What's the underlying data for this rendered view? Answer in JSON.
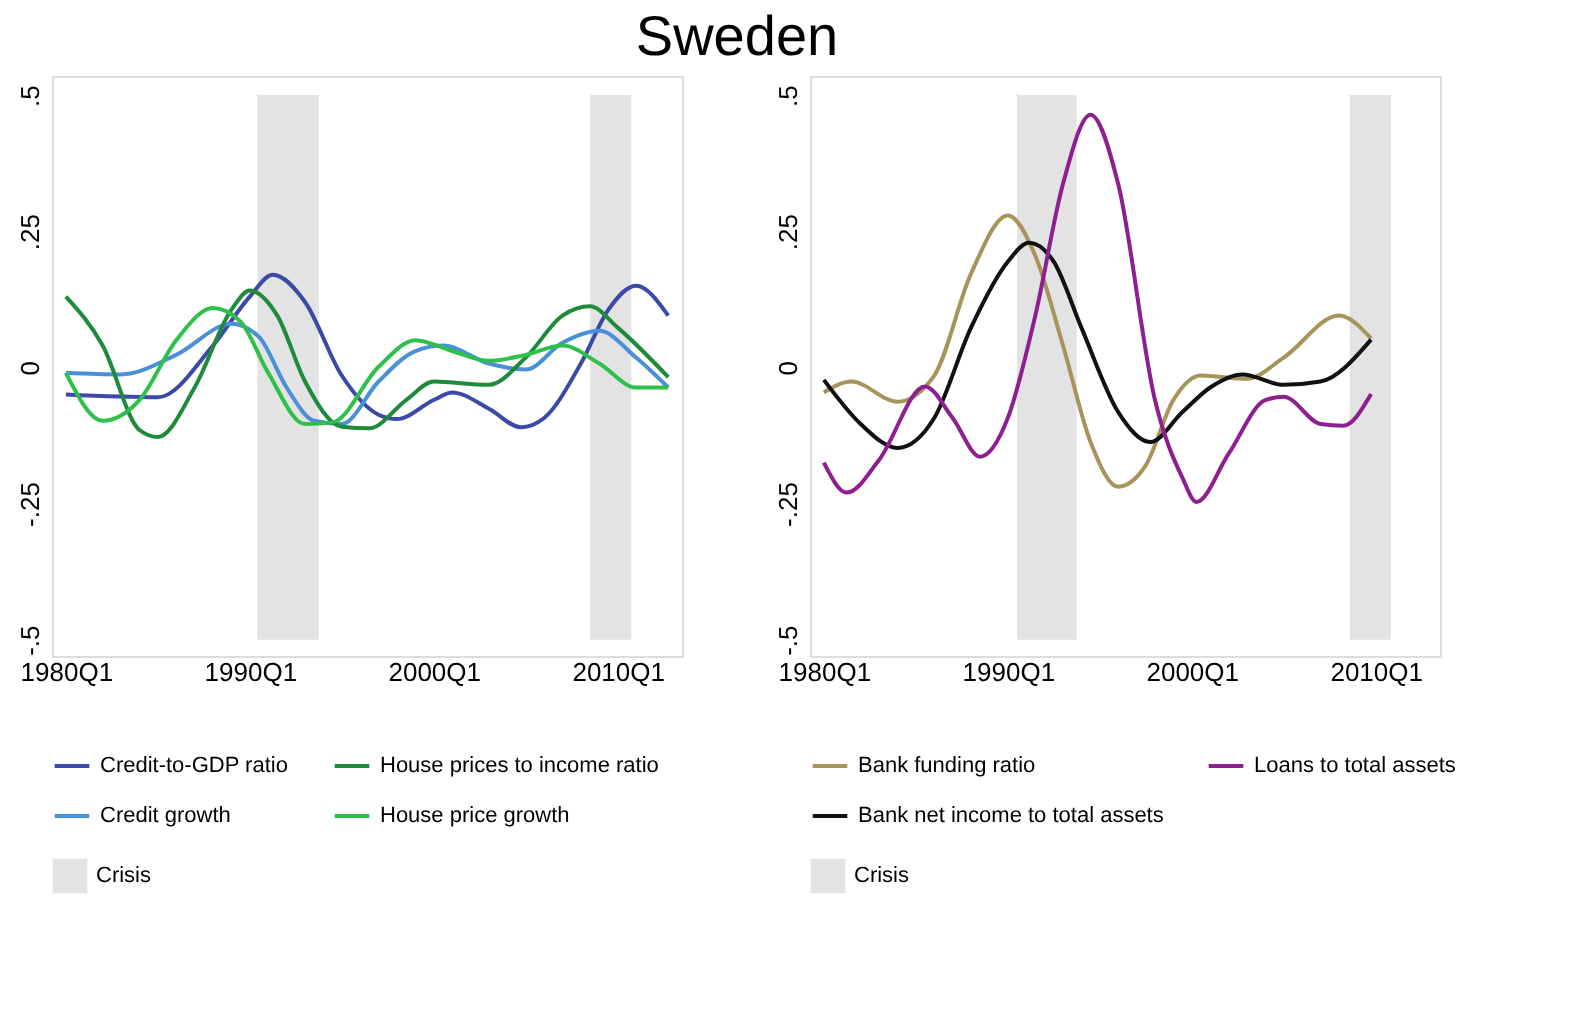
{
  "chart_data": [
    {
      "type": "line",
      "title": "Sweden",
      "xlim": [
        "1979-04",
        "2013-07"
      ],
      "ylim": [
        -0.53,
        0.535
      ],
      "xticks": [
        {
          "value": "1980-01",
          "label": "1980Q1"
        },
        {
          "value": "1990-01",
          "label": "1990Q1"
        },
        {
          "value": "2000-01",
          "label": "2000Q1"
        },
        {
          "value": "2010-01",
          "label": "2010Q1"
        }
      ],
      "yticks": [
        {
          "value": -0.5,
          "label": "-.5"
        },
        {
          "value": -0.25,
          "label": "-.25"
        },
        {
          "value": 0,
          "label": "0"
        },
        {
          "value": 0.25,
          "label": ".25"
        },
        {
          "value": 0.5,
          "label": ".5"
        }
      ],
      "grid": false,
      "legend": "bottom",
      "marker": "none",
      "line_style": "solid",
      "bands": [
        {
          "axis": "x",
          "from": "1990-06",
          "to": "1993-10",
          "label": "Crisis",
          "color": "#e3e3e3"
        },
        {
          "axis": "x",
          "from": "2008-07",
          "to": "2010-10",
          "color": "#e3e3e3"
        }
      ],
      "series": [
        {
          "name": "Credit-to-GDP ratio",
          "color": "#3b4aa8",
          "x": [
            "1980-01",
            "1985-01",
            "1988-01",
            "1990-01",
            "1991-04",
            "1993-01",
            "1995-01",
            "1997-01",
            "1998-01",
            "2000-01",
            "2001-01",
            "2003-01",
            "2004-10",
            "2006-01",
            "2008-01",
            "2009-07",
            "2011-01",
            "2012-10"
          ],
          "values": [
            -0.05,
            -0.055,
            0.04,
            0.13,
            0.17,
            0.12,
            -0.015,
            -0.087,
            -0.095,
            -0.06,
            -0.046,
            -0.076,
            -0.11,
            -0.093,
            0.007,
            0.106,
            0.15,
            0.095
          ]
        },
        {
          "name": "Credit growth",
          "color": "#4a90d9",
          "x": [
            "1980-01",
            "1983-01",
            "1986-01",
            "1989-01",
            "1990-07",
            "1992-01",
            "1993-07",
            "1995-01",
            "1997-01",
            "1999-01",
            "2000-07",
            "2003-01",
            "2005-01",
            "2007-01",
            "2009-01",
            "2011-01",
            "2012-10"
          ],
          "values": [
            -0.01,
            -0.013,
            0.023,
            0.08,
            0.056,
            -0.037,
            -0.098,
            -0.104,
            -0.026,
            0.03,
            0.04,
            0.007,
            -0.004,
            0.045,
            0.067,
            0.018,
            -0.037
          ]
        },
        {
          "name": "House prices to income ratio",
          "color": "#1e8a3a",
          "x": [
            "1980-01",
            "1982-01",
            "1984-01",
            "1985-01",
            "1987-01",
            "1989-01",
            "1990-01",
            "1991-07",
            "1993-01",
            "1995-01",
            "1996-07",
            "1998-07",
            "2000-01",
            "2003-01",
            "2005-01",
            "2007-01",
            "2008-07",
            "2010-01",
            "2012-10"
          ],
          "values": [
            0.13,
            0.04,
            -0.115,
            -0.128,
            -0.037,
            0.106,
            0.141,
            0.095,
            -0.026,
            -0.109,
            -0.112,
            -0.06,
            -0.026,
            -0.032,
            0.018,
            0.095,
            0.112,
            0.073,
            -0.018
          ]
        },
        {
          "name": "House price growth",
          "color": "#2ec04a",
          "x": [
            "1980-01",
            "1982-01",
            "1984-01",
            "1986-01",
            "1988-01",
            "1989-07",
            "1991-01",
            "1993-01",
            "1994-07",
            "1997-01",
            "1999-01",
            "2001-01",
            "2003-01",
            "2005-01",
            "2007-01",
            "2009-01",
            "2011-01",
            "2012-10"
          ],
          "values": [
            -0.01,
            -0.098,
            -0.06,
            0.05,
            0.109,
            0.084,
            -0.01,
            -0.104,
            -0.101,
            0.001,
            0.05,
            0.03,
            0.012,
            0.023,
            0.04,
            0.007,
            -0.037,
            -0.037
          ]
        }
      ]
    },
    {
      "type": "line",
      "xlim": [
        "1979-04",
        "2013-07"
      ],
      "ylim": [
        -0.53,
        0.535
      ],
      "xticks": [
        {
          "value": "1980-01",
          "label": "1980Q1"
        },
        {
          "value": "1990-01",
          "label": "1990Q1"
        },
        {
          "value": "2000-01",
          "label": "2000Q1"
        },
        {
          "value": "2010-01",
          "label": "2010Q1"
        }
      ],
      "yticks": [
        {
          "value": -0.5,
          "label": "-.5"
        },
        {
          "value": -0.25,
          "label": "-.25"
        },
        {
          "value": 0,
          "label": "0"
        },
        {
          "value": 0.25,
          "label": ".25"
        },
        {
          "value": 0.5,
          "label": ".5"
        }
      ],
      "grid": false,
      "legend": "bottom",
      "marker": "none",
      "line_style": "solid",
      "bands": [
        {
          "axis": "x",
          "from": "1990-07",
          "to": "1993-10",
          "label": "Crisis",
          "color": "#e3e3e3"
        },
        {
          "axis": "x",
          "from": "2008-08",
          "to": "2010-11",
          "color": "#e3e3e3"
        }
      ],
      "series": [
        {
          "name": "Bank funding ratio",
          "color": "#a8945a",
          "x": [
            "1980-01",
            "1981-07",
            "1984-01",
            "1986-01",
            "1988-01",
            "1990-01",
            "1991-07",
            "1993-01",
            "1994-07",
            "1996-01",
            "1997-07",
            "1999-01",
            "2000-07",
            "2003-01",
            "2005-01",
            "2008-01",
            "2009-10"
          ],
          "values": [
            -0.046,
            -0.026,
            -0.063,
            -0.015,
            0.172,
            0.279,
            0.205,
            0.04,
            -0.137,
            -0.219,
            -0.18,
            -0.06,
            -0.015,
            -0.021,
            0.018,
            0.095,
            0.053
          ]
        },
        {
          "name": "Bank net income to total assets",
          "color": "#111111",
          "x": [
            "1980-01",
            "1982-01",
            "1984-01",
            "1986-01",
            "1988-01",
            "1990-01",
            "1991-03",
            "1992-07",
            "1994-01",
            "1996-01",
            "1997-10",
            "1999-07",
            "2001-01",
            "2002-10",
            "2005-01",
            "2007-01",
            "2009-10"
          ],
          "values": [
            -0.023,
            -0.104,
            -0.148,
            -0.093,
            0.073,
            0.194,
            0.229,
            0.194,
            0.073,
            -0.082,
            -0.137,
            -0.082,
            -0.037,
            -0.013,
            -0.032,
            -0.026,
            0.051
          ]
        },
        {
          "name": "Loans to total assets",
          "color": "#8e1f8e",
          "x": [
            "1980-01",
            "1981-04",
            "1983-01",
            "1985-07",
            "1987-01",
            "1988-07",
            "1990-01",
            "1991-07",
            "1993-01",
            "1994-07",
            "1996-01",
            "1998-01",
            "1999-07",
            "2000-04",
            "2002-01",
            "2004-01",
            "2005-01",
            "2007-01",
            "2008-04",
            "2009-10"
          ],
          "values": [
            -0.175,
            -0.23,
            -0.17,
            -0.035,
            -0.093,
            -0.164,
            -0.093,
            0.095,
            0.337,
            0.464,
            0.337,
            -0.06,
            -0.203,
            -0.247,
            -0.159,
            -0.06,
            -0.054,
            -0.104,
            -0.107,
            -0.049
          ]
        }
      ]
    }
  ]
}
